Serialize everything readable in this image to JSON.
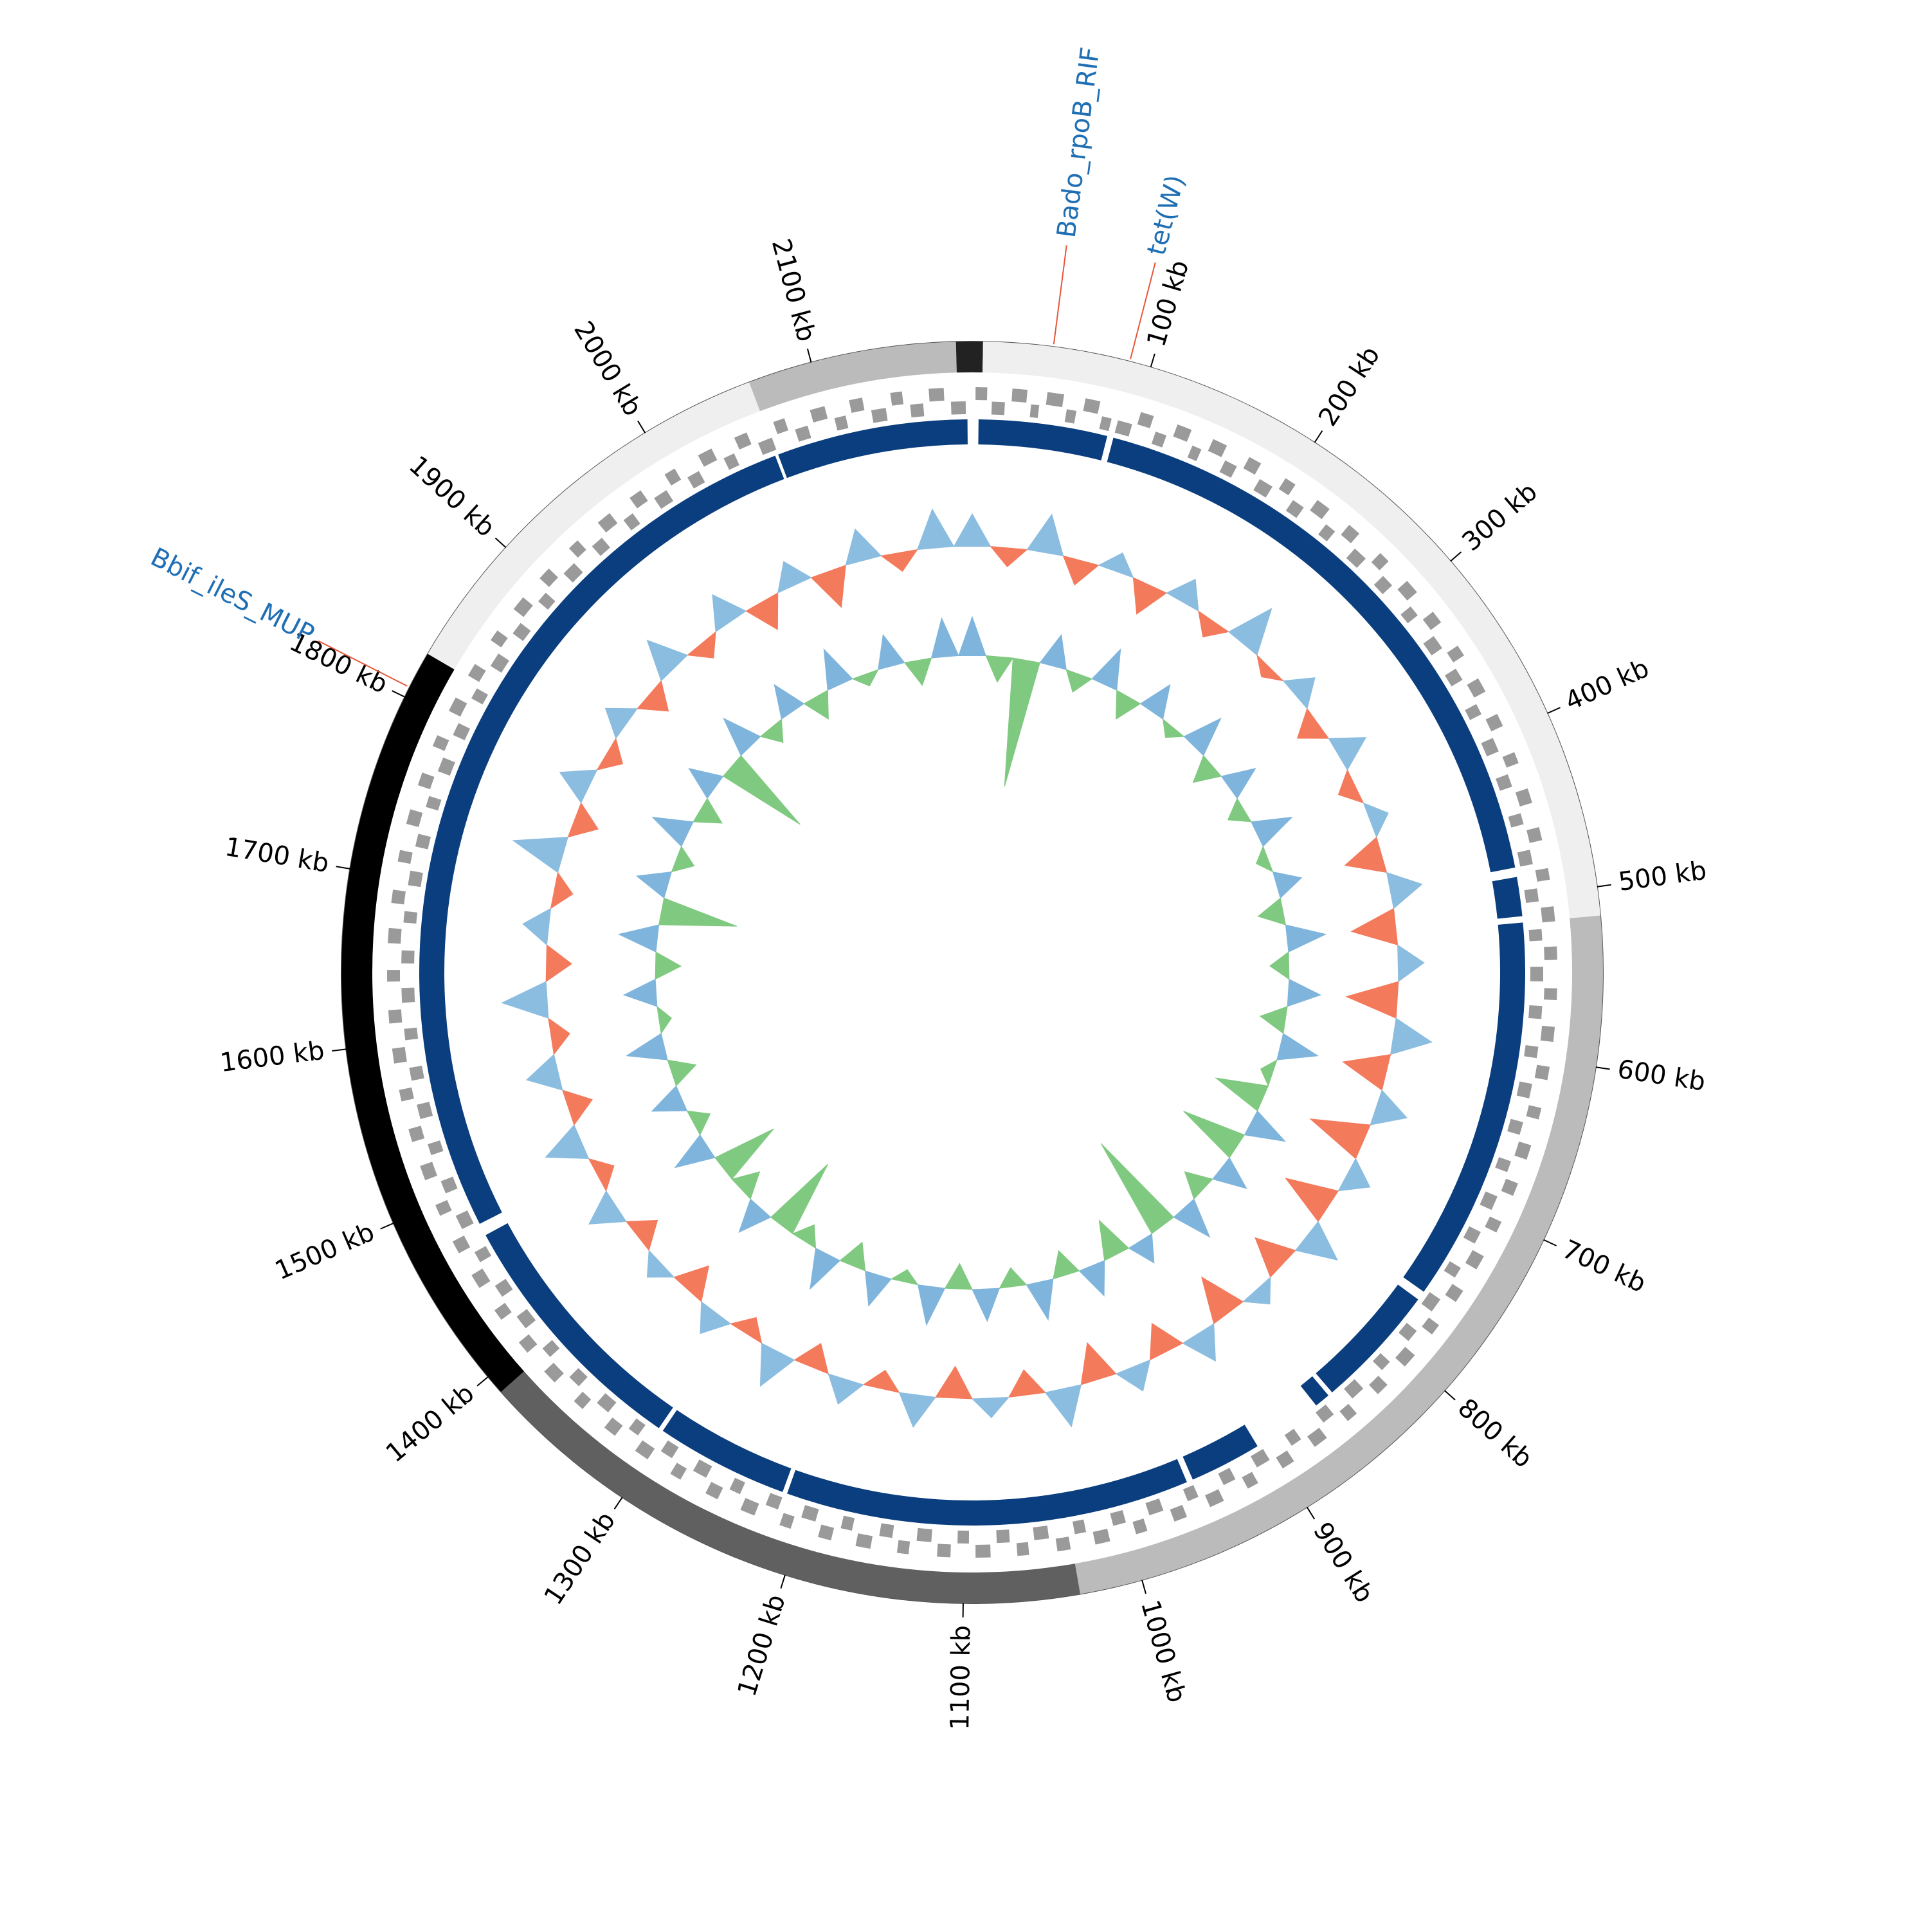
{
  "chart_data": {
    "type": "circos",
    "xlim": [
      0,
      2190
    ],
    "xticks": [
      {
        "value": 100,
        "label": "100 kb"
      },
      {
        "value": 200,
        "label": "200 kb"
      },
      {
        "value": 300,
        "label": "300 kb"
      },
      {
        "value": 400,
        "label": "400 kb"
      },
      {
        "value": 500,
        "label": "500 kb"
      },
      {
        "value": 600,
        "label": "600 kb"
      },
      {
        "value": 700,
        "label": "700 kb"
      },
      {
        "value": 800,
        "label": "800 kb"
      },
      {
        "value": 900,
        "label": "900 kb"
      },
      {
        "value": 1000,
        "label": "1000 kb"
      },
      {
        "value": 1100,
        "label": "1100 kb"
      },
      {
        "value": 1200,
        "label": "1200 kb"
      },
      {
        "value": 1300,
        "label": "1300 kb"
      },
      {
        "value": 1400,
        "label": "1400 kb"
      },
      {
        "value": 1500,
        "label": "1500 kb"
      },
      {
        "value": 1600,
        "label": "1600 kb"
      },
      {
        "value": 1700,
        "label": "1700 kb"
      },
      {
        "value": 1800,
        "label": "1800 kb"
      },
      {
        "value": 1900,
        "label": "1900 kb"
      },
      {
        "value": 2000,
        "label": "2000 kb"
      },
      {
        "value": 2100,
        "label": "2100 kb"
      }
    ],
    "segments": [
      {
        "start": 0,
        "end": 6,
        "color": "#222222"
      },
      {
        "start": 6,
        "end": 516,
        "color": "#efefef"
      },
      {
        "start": 516,
        "end": 1035,
        "color": "#bbbbbb"
      },
      {
        "start": 1035,
        "end": 1389,
        "color": "#606060"
      },
      {
        "start": 1389,
        "end": 1827,
        "color": "#000000"
      },
      {
        "start": 1827,
        "end": 2064,
        "color": "#efefef"
      },
      {
        "start": 2064,
        "end": 2181,
        "color": "#bbbbbb"
      },
      {
        "start": 2181,
        "end": 2190,
        "color": "#222222"
      }
    ],
    "blocks": {
      "color": "#0b3e7e",
      "ranges": [
        [
          4,
          86
        ],
        [
          90,
          481
        ],
        [
          487,
          512
        ],
        [
          516,
          762
        ],
        [
          768,
          848
        ],
        [
          851,
          861
        ],
        [
          906,
          952
        ],
        [
          956,
          1214
        ],
        [
          1217,
          1302
        ],
        [
          1305,
          1470
        ],
        [
          1478,
          2063
        ],
        [
          2065,
          2187
        ]
      ]
    },
    "genes": {
      "color": "#9a9a9a",
      "items": [
        [
          2,
          9,
          1
        ],
        [
          12,
          20,
          -1
        ],
        [
          24,
          33,
          1
        ],
        [
          36,
          41,
          -1
        ],
        [
          45,
          55,
          1
        ],
        [
          58,
          64,
          -1
        ],
        [
          68,
          77,
          1
        ],
        [
          80,
          86,
          -1
        ],
        [
          90,
          99,
          -1
        ],
        [
          102,
          110,
          1
        ],
        [
          114,
          121,
          -1
        ],
        [
          125,
          134,
          1
        ],
        [
          138,
          144,
          -1
        ],
        [
          148,
          157,
          1
        ],
        [
          160,
          168,
          -1
        ],
        [
          172,
          180,
          1
        ],
        [
          184,
          193,
          -1
        ],
        [
          197,
          204,
          1
        ],
        [
          208,
          216,
          -1
        ],
        [
          220,
          229,
          1
        ],
        [
          233,
          240,
          -1
        ],
        [
          244,
          252,
          1
        ],
        [
          256,
          265,
          -1
        ],
        [
          269,
          276,
          1
        ],
        [
          280,
          288,
          -1
        ],
        [
          292,
          301,
          1
        ],
        [
          305,
          312,
          -1
        ],
        [
          316,
          324,
          1
        ],
        [
          328,
          337,
          -1
        ],
        [
          341,
          348,
          1
        ],
        [
          352,
          360,
          -1
        ],
        [
          364,
          373,
          1
        ],
        [
          377,
          384,
          -1
        ],
        [
          388,
          396,
          1
        ],
        [
          400,
          409,
          -1
        ],
        [
          413,
          420,
          1
        ],
        [
          424,
          432,
          -1
        ],
        [
          436,
          445,
          1
        ],
        [
          449,
          456,
          -1
        ],
        [
          460,
          468,
          1
        ],
        [
          472,
          481,
          -1
        ],
        [
          485,
          492,
          1
        ],
        [
          496,
          504,
          -1
        ],
        [
          508,
          517,
          1
        ],
        [
          521,
          528,
          -1
        ],
        [
          532,
          540,
          1
        ],
        [
          544,
          553,
          -1
        ],
        [
          557,
          564,
          1
        ],
        [
          568,
          576,
          -1
        ],
        [
          580,
          589,
          1
        ],
        [
          593,
          600,
          -1
        ],
        [
          604,
          612,
          1
        ],
        [
          616,
          625,
          -1
        ],
        [
          629,
          636,
          1
        ],
        [
          640,
          648,
          -1
        ],
        [
          652,
          661,
          1
        ],
        [
          665,
          672,
          -1
        ],
        [
          676,
          684,
          1
        ],
        [
          688,
          697,
          -1
        ],
        [
          701,
          708,
          1
        ],
        [
          712,
          720,
          -1
        ],
        [
          724,
          733,
          1
        ],
        [
          737,
          744,
          -1
        ],
        [
          748,
          756,
          1
        ],
        [
          760,
          769,
          -1
        ],
        [
          773,
          780,
          1
        ],
        [
          784,
          792,
          -1
        ],
        [
          796,
          805,
          1
        ],
        [
          809,
          816,
          -1
        ],
        [
          820,
          828,
          1
        ],
        [
          832,
          841,
          -1
        ],
        [
          845,
          852,
          1
        ],
        [
          856,
          864,
          -1
        ],
        [
          868,
          877,
          1
        ],
        [
          881,
          888,
          -1
        ],
        [
          892,
          900,
          1
        ],
        [
          904,
          913,
          -1
        ],
        [
          917,
          924,
          1
        ],
        [
          928,
          936,
          -1
        ],
        [
          940,
          949,
          1
        ],
        [
          953,
          960,
          -1
        ],
        [
          964,
          972,
          1
        ],
        [
          976,
          985,
          -1
        ],
        [
          989,
          996,
          1
        ],
        [
          1000,
          1008,
          -1
        ],
        [
          1012,
          1021,
          1
        ],
        [
          1025,
          1032,
          -1
        ],
        [
          1036,
          1044,
          1
        ],
        [
          1048,
          1057,
          -1
        ],
        [
          1061,
          1068,
          1
        ],
        [
          1072,
          1080,
          -1
        ],
        [
          1084,
          1093,
          1
        ],
        [
          1097,
          1104,
          -1
        ],
        [
          1108,
          1116,
          1
        ],
        [
          1120,
          1129,
          -1
        ],
        [
          1133,
          1140,
          1
        ],
        [
          1144,
          1152,
          -1
        ],
        [
          1156,
          1165,
          1
        ],
        [
          1169,
          1176,
          -1
        ],
        [
          1180,
          1188,
          1
        ],
        [
          1192,
          1201,
          -1
        ],
        [
          1205,
          1212,
          1
        ],
        [
          1216,
          1224,
          -1
        ],
        [
          1228,
          1237,
          1
        ],
        [
          1241,
          1248,
          -1
        ],
        [
          1252,
          1260,
          1
        ],
        [
          1264,
          1273,
          -1
        ],
        [
          1277,
          1284,
          1
        ],
        [
          1288,
          1296,
          -1
        ],
        [
          1300,
          1309,
          1
        ],
        [
          1313,
          1320,
          -1
        ],
        [
          1324,
          1332,
          1
        ],
        [
          1336,
          1345,
          -1
        ],
        [
          1349,
          1356,
          1
        ],
        [
          1360,
          1368,
          -1
        ],
        [
          1372,
          1381,
          1
        ],
        [
          1385,
          1392,
          -1
        ],
        [
          1396,
          1404,
          1
        ],
        [
          1408,
          1417,
          -1
        ],
        [
          1421,
          1428,
          1
        ],
        [
          1432,
          1440,
          -1
        ],
        [
          1444,
          1453,
          1
        ],
        [
          1457,
          1464,
          -1
        ],
        [
          1468,
          1476,
          1
        ],
        [
          1480,
          1489,
          -1
        ],
        [
          1493,
          1500,
          1
        ],
        [
          1504,
          1512,
          -1
        ],
        [
          1516,
          1525,
          1
        ],
        [
          1529,
          1536,
          -1
        ],
        [
          1540,
          1548,
          1
        ],
        [
          1552,
          1561,
          -1
        ],
        [
          1565,
          1572,
          1
        ],
        [
          1576,
          1584,
          -1
        ],
        [
          1588,
          1597,
          1
        ],
        [
          1601,
          1608,
          -1
        ],
        [
          1612,
          1620,
          1
        ],
        [
          1624,
          1633,
          -1
        ],
        [
          1637,
          1644,
          1
        ],
        [
          1648,
          1656,
          -1
        ],
        [
          1660,
          1669,
          1
        ],
        [
          1673,
          1680,
          -1
        ],
        [
          1684,
          1692,
          1
        ],
        [
          1696,
          1705,
          -1
        ],
        [
          1709,
          1716,
          1
        ],
        [
          1720,
          1728,
          -1
        ],
        [
          1732,
          1741,
          1
        ],
        [
          1745,
          1752,
          -1
        ],
        [
          1756,
          1764,
          1
        ],
        [
          1768,
          1777,
          -1
        ],
        [
          1781,
          1788,
          1
        ],
        [
          1792,
          1800,
          -1
        ],
        [
          1804,
          1813,
          1
        ],
        [
          1817,
          1824,
          -1
        ],
        [
          1828,
          1836,
          1
        ],
        [
          1840,
          1849,
          -1
        ],
        [
          1853,
          1860,
          1
        ],
        [
          1864,
          1872,
          -1
        ],
        [
          1876,
          1885,
          1
        ],
        [
          1889,
          1896,
          -1
        ],
        [
          1900,
          1908,
          1
        ],
        [
          1912,
          1921,
          -1
        ],
        [
          1925,
          1932,
          1
        ],
        [
          1936,
          1944,
          -1
        ],
        [
          1948,
          1957,
          1
        ],
        [
          1961,
          1968,
          -1
        ],
        [
          1972,
          1980,
          1
        ],
        [
          1984,
          1993,
          -1
        ],
        [
          1997,
          2004,
          1
        ],
        [
          2008,
          2016,
          -1
        ],
        [
          2020,
          2029,
          1
        ],
        [
          2033,
          2040,
          -1
        ],
        [
          2044,
          2052,
          1
        ],
        [
          2056,
          2065,
          -1
        ],
        [
          2069,
          2076,
          1
        ],
        [
          2080,
          2088,
          -1
        ],
        [
          2092,
          2101,
          1
        ],
        [
          2105,
          2112,
          -1
        ],
        [
          2116,
          2124,
          1
        ],
        [
          2128,
          2137,
          -1
        ],
        [
          2141,
          2148,
          1
        ],
        [
          2152,
          2160,
          -1
        ],
        [
          2164,
          2173,
          1
        ],
        [
          2177,
          2186,
          -1
        ]
      ]
    },
    "gc_content": {
      "ylim": [
        -1,
        1
      ],
      "positive_color": "#8bbde0",
      "negative_color": "#f47a5c",
      "x": [
        0,
        30,
        60,
        90,
        120,
        150,
        180,
        210,
        240,
        270,
        300,
        330,
        360,
        390,
        420,
        450,
        480,
        510,
        540,
        570,
        600,
        630,
        660,
        690,
        720,
        750,
        780,
        810,
        840,
        870,
        900,
        930,
        960,
        990,
        1020,
        1050,
        1080,
        1110,
        1140,
        1170,
        1200,
        1230,
        1260,
        1290,
        1320,
        1350,
        1380,
        1410,
        1440,
        1470,
        1500,
        1530,
        1560,
        1590,
        1620,
        1650,
        1680,
        1710,
        1740,
        1770,
        1800,
        1830,
        1860,
        1890,
        1920,
        1950,
        1980,
        2010,
        2040,
        2070,
        2100,
        2130,
        2160
      ],
      "values": [
        0.5,
        -0.3,
        0.6,
        -0.4,
        0.3,
        -0.5,
        0.4,
        -0.3,
        0.7,
        -0.2,
        0.4,
        -0.4,
        0.5,
        -0.3,
        0.3,
        -0.6,
        0.5,
        -0.7,
        0.4,
        -0.8,
        0.6,
        -0.7,
        0.5,
        -0.9,
        0.4,
        -0.8,
        0.6,
        -0.6,
        0.3,
        -0.7,
        0.5,
        -0.5,
        0.4,
        -0.6,
        0.6,
        -0.4,
        0.3,
        -0.5,
        0.5,
        -0.3,
        0.4,
        -0.4,
        0.6,
        -0.3,
        0.4,
        -0.5,
        0.3,
        -0.4,
        0.5,
        -0.3,
        0.6,
        -0.4,
        0.5,
        -0.3,
        0.7,
        -0.4,
        0.4,
        -0.3,
        0.8,
        -0.4,
        0.5,
        -0.3,
        0.4,
        -0.4,
        0.6,
        -0.3,
        0.5,
        -0.5,
        0.4,
        -0.6,
        0.5,
        -0.3,
        0.6
      ]
    },
    "gc_skew": {
      "ylim": [
        -1,
        1
      ],
      "positive_color": "#7fb5dc",
      "negative_color": "#80c980",
      "x": [
        0,
        30,
        60,
        90,
        120,
        150,
        180,
        210,
        240,
        270,
        300,
        330,
        360,
        390,
        420,
        450,
        480,
        510,
        540,
        570,
        600,
        630,
        660,
        690,
        720,
        750,
        780,
        810,
        840,
        870,
        900,
        930,
        960,
        990,
        1020,
        1050,
        1080,
        1110,
        1140,
        1170,
        1200,
        1230,
        1260,
        1290,
        1320,
        1350,
        1380,
        1410,
        1440,
        1470,
        1500,
        1530,
        1560,
        1590,
        1620,
        1650,
        1680,
        1710,
        1740,
        1770,
        1800,
        1830,
        1860,
        1890,
        1920,
        1950,
        1980,
        2010,
        2040,
        2070,
        2100,
        2130,
        2160
      ],
      "values": [
        0.3,
        -0.2,
        -1.0,
        0.25,
        -0.15,
        0.3,
        -0.2,
        0.25,
        -0.1,
        0.3,
        -0.2,
        0.25,
        -0.15,
        0.3,
        -0.1,
        0.2,
        -0.2,
        0.3,
        -0.15,
        0.25,
        -0.2,
        0.3,
        -0.1,
        -0.4,
        0.3,
        -0.5,
        0.25,
        -0.2,
        0.3,
        -0.8,
        0.2,
        -0.3,
        0.25,
        -0.2,
        0.3,
        -0.15,
        0.25,
        -0.2,
        0.3,
        -0.1,
        0.25,
        -0.2,
        0.3,
        -0.15,
        -0.6,
        0.25,
        -0.2,
        -0.5,
        0.3,
        -0.15,
        0.25,
        -0.2,
        0.3,
        -0.1,
        0.25,
        -0.2,
        0.3,
        -0.6,
        0.25,
        -0.15,
        0.3,
        -0.2,
        0.25,
        -0.7,
        0.3,
        -0.15,
        0.25,
        -0.2,
        0.3,
        -0.1,
        0.25,
        -0.2,
        0.3
      ]
    },
    "annotations": [
      {
        "label": "Bado_rpoB_RIF",
        "position": 45
      },
      {
        "label": "tet(W)",
        "position": 88
      },
      {
        "label": "Bbif_ileS_MUP",
        "position": 1806
      }
    ],
    "annotation_color": "#1f6fb4",
    "leader_color": "#e8553a"
  }
}
